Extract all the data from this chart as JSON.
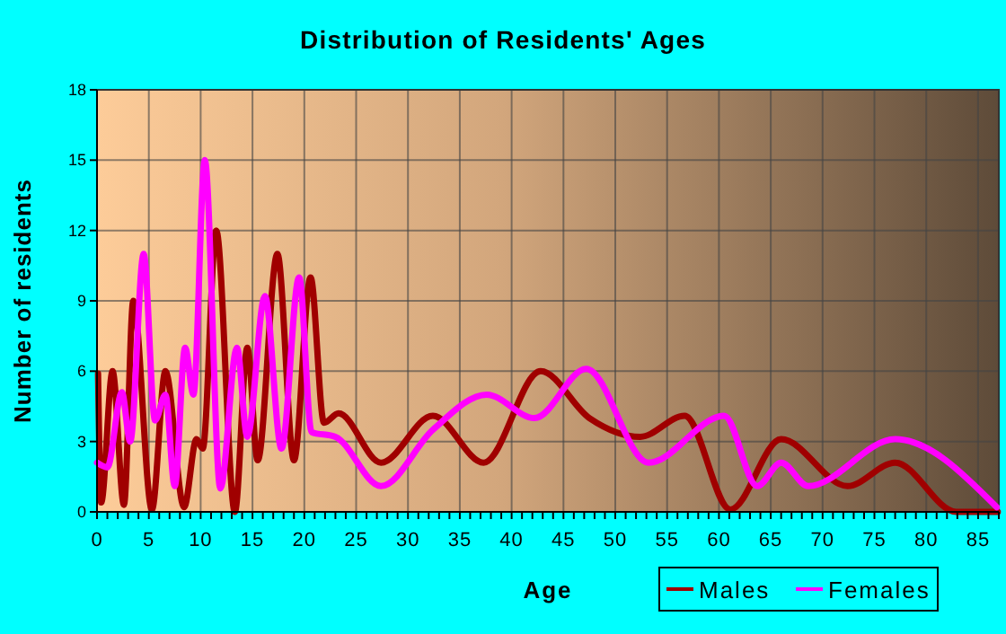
{
  "chart_data": {
    "type": "line",
    "title": "Distribution of Residents' Ages",
    "xlabel": "Age",
    "ylabel": "Number of residents",
    "xlim": [
      0,
      87
    ],
    "ylim": [
      0,
      18
    ],
    "yticks": [
      0,
      3,
      6,
      9,
      12,
      15,
      18
    ],
    "xticks": [
      0,
      {
        "value": 1,
        "label": null
      },
      {
        "value": 2,
        "label": null
      },
      {
        "value": 3,
        "label": null
      },
      {
        "value": 4,
        "label": null
      },
      5,
      {
        "value": 6,
        "label": null
      },
      {
        "value": 7,
        "label": null
      },
      {
        "value": 8,
        "label": null
      },
      {
        "value": 9,
        "label": null
      },
      10,
      {
        "value": 11,
        "label": null
      },
      {
        "value": 12,
        "label": null
      },
      {
        "value": 13,
        "label": null
      },
      {
        "value": 14,
        "label": null
      },
      15,
      {
        "value": 16,
        "label": null
      },
      {
        "value": 17,
        "label": null
      },
      {
        "value": 18,
        "label": null
      },
      {
        "value": 19,
        "label": null
      },
      20,
      {
        "value": 21,
        "label": null
      },
      {
        "value": 22,
        "label": null
      },
      {
        "value": 23,
        "label": null
      },
      {
        "value": 24,
        "label": null
      },
      25,
      {
        "value": 26,
        "label": null
      },
      {
        "value": 27,
        "label": null
      },
      {
        "value": 28,
        "label": null
      },
      {
        "value": 29,
        "label": null
      },
      30,
      {
        "value": 31,
        "label": null
      },
      {
        "value": 32,
        "label": null
      },
      {
        "value": 33,
        "label": null
      },
      {
        "value": 34,
        "label": null
      },
      35,
      {
        "value": 36,
        "label": null
      },
      {
        "value": 37,
        "label": null
      },
      {
        "value": 38,
        "label": null
      },
      {
        "value": 39,
        "label": null
      },
      40,
      {
        "value": 41,
        "label": null
      },
      {
        "value": 42,
        "label": null
      },
      {
        "value": 43,
        "label": null
      },
      {
        "value": 44,
        "label": null
      },
      45,
      {
        "value": 46,
        "label": null
      },
      {
        "value": 47,
        "label": null
      },
      {
        "value": 48,
        "label": null
      },
      {
        "value": 49,
        "label": null
      },
      50,
      {
        "value": 51,
        "label": null
      },
      {
        "value": 52,
        "label": null
      },
      {
        "value": 53,
        "label": null
      },
      {
        "value": 54,
        "label": null
      },
      55,
      {
        "value": 56,
        "label": null
      },
      {
        "value": 57,
        "label": null
      },
      {
        "value": 58,
        "label": null
      },
      {
        "value": 59,
        "label": null
      },
      60,
      {
        "value": 61,
        "label": null
      },
      {
        "value": 62,
        "label": null
      },
      {
        "value": 63,
        "label": null
      },
      {
        "value": 64,
        "label": null
      },
      65,
      {
        "value": 66,
        "label": null
      },
      {
        "value": 67,
        "label": null
      },
      {
        "value": 68,
        "label": null
      },
      {
        "value": 69,
        "label": null
      },
      70,
      {
        "value": 71,
        "label": null
      },
      {
        "value": 72,
        "label": null
      },
      {
        "value": 73,
        "label": null
      },
      {
        "value": 74,
        "label": null
      },
      75,
      {
        "value": 76,
        "label": null
      },
      {
        "value": 77,
        "label": null
      },
      {
        "value": 78,
        "label": null
      },
      {
        "value": 79,
        "label": null
      },
      80,
      {
        "value": 81,
        "label": null
      },
      {
        "value": 82,
        "label": null
      },
      {
        "value": 83,
        "label": null
      },
      {
        "value": 84,
        "label": null
      },
      85,
      {
        "value": 86,
        "label": null
      },
      {
        "value": 87,
        "label": null
      }
    ],
    "grid": true,
    "legend": "bottom right",
    "line_style": "solid",
    "series": [
      {
        "name": "Males",
        "color": "#a00000",
        "x": [
          0.1,
          0.4,
          1.5,
          2.6,
          3.5,
          5.3,
          6.6,
          8.4,
          9.6,
          10.2,
          11.5,
          13.3,
          14.5,
          15.5,
          17.4,
          19,
          20.6,
          21.9,
          23.3,
          27.4,
          32.4,
          37.3,
          42.8,
          47.5,
          52.4,
          56.7,
          61.1,
          66,
          72.4,
          77,
          82.9,
          86.9
        ],
        "values": [
          5.9,
          0.4,
          6,
          0.3,
          9,
          0.1,
          6,
          0.2,
          3.1,
          2.7,
          12,
          0,
          7,
          2.2,
          11,
          2.2,
          10,
          3.8,
          4.2,
          2.1,
          4.1,
          2.1,
          6,
          4,
          3.2,
          4.1,
          0.1,
          3.1,
          1.1,
          2.1,
          0,
          0
        ]
      },
      {
        "name": "Females",
        "color": "#ff00ff",
        "x": [
          0,
          1,
          2.4,
          3.2,
          4.5,
          5.6,
          6.6,
          7.5,
          8.5,
          9.3,
          10.4,
          11.9,
          13.5,
          14.5,
          16.2,
          17.8,
          19.5,
          20.7,
          23,
          27.4,
          32.4,
          37.6,
          42.2,
          47.2,
          53.2,
          60.5,
          63.7,
          66,
          68.6,
          77,
          86.8
        ],
        "values": [
          2.1,
          1.9,
          5.1,
          3,
          11,
          3.9,
          5,
          1.1,
          7,
          5,
          15,
          1,
          7,
          3.2,
          9.2,
          2.7,
          10,
          3.4,
          3.2,
          1.1,
          3.5,
          5,
          4,
          6.1,
          2.1,
          4.1,
          1.1,
          2.1,
          1.1,
          3.1,
          0.2
        ]
      }
    ]
  }
}
